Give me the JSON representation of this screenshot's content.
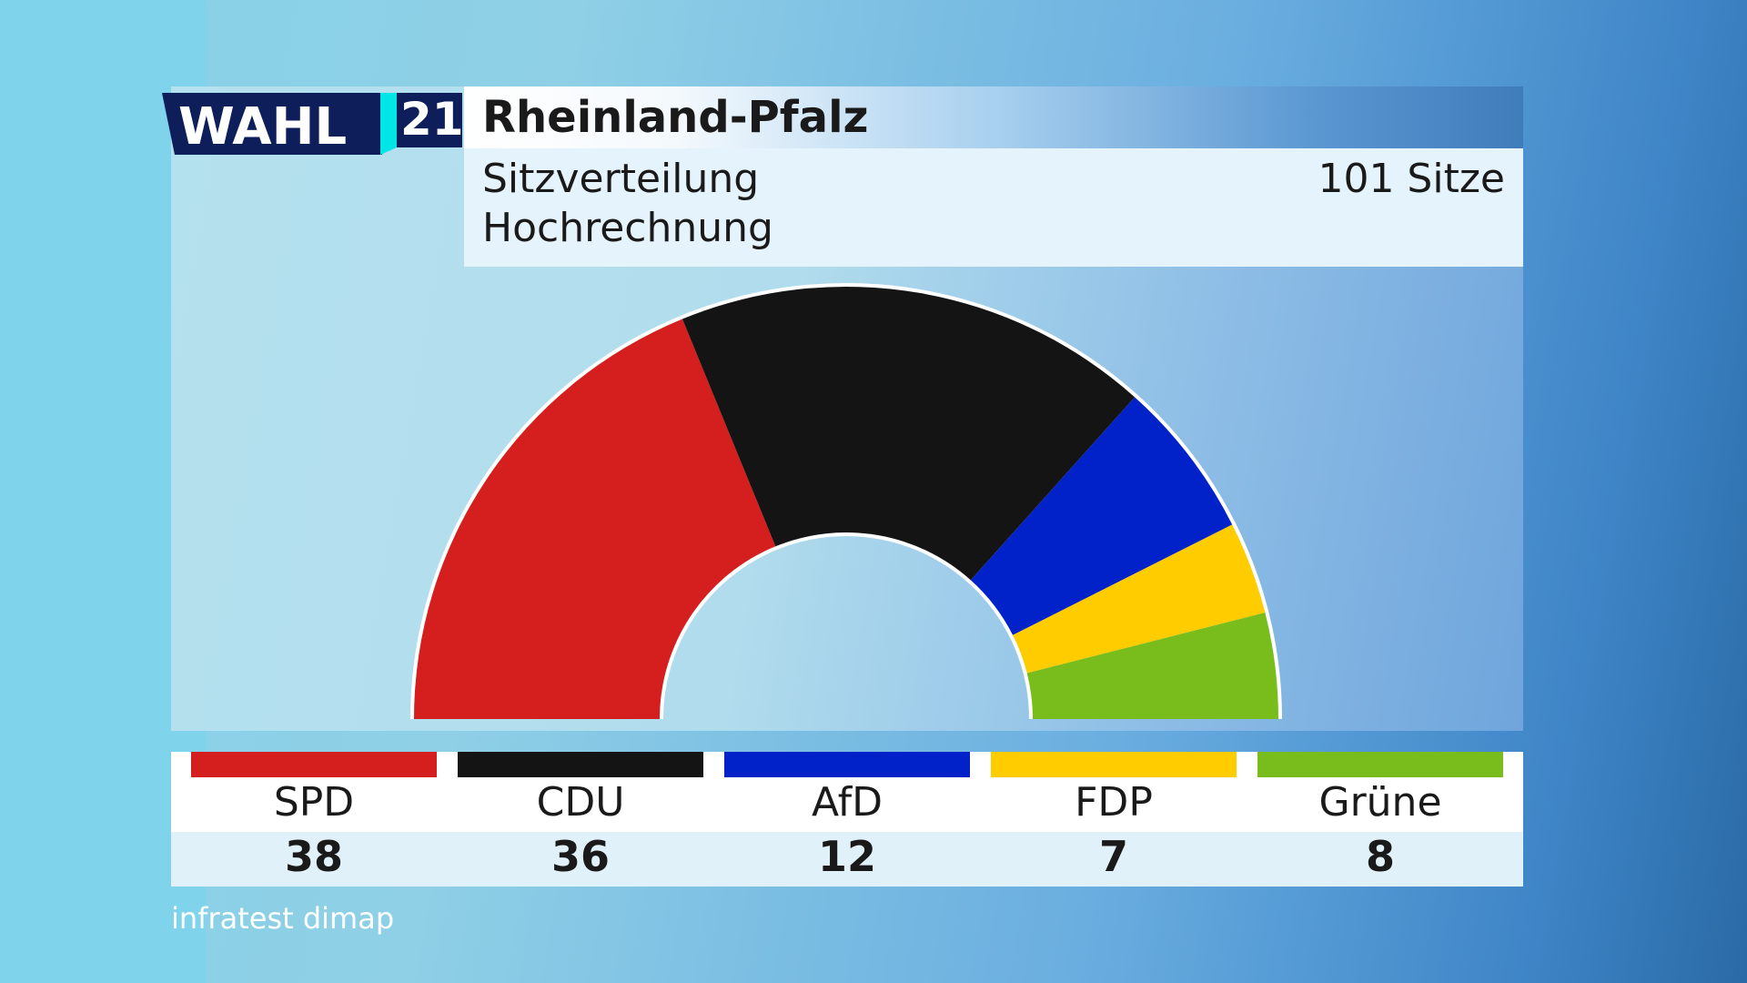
{
  "logo": {
    "word": "WAHL",
    "year": "21"
  },
  "header": {
    "title": "Rheinland-Pfalz",
    "subtitle_1": "Sitzverteilung",
    "subtitle_2": "Hochrechnung",
    "total": "101 Sitze"
  },
  "source": "infratest dimap",
  "colors": {
    "SPD": "#d51f1f",
    "CDU": "#141414",
    "AfD": "#0022c8",
    "FDP": "#ffcc00",
    "Grüne": "#78bd1c"
  },
  "chart_data": {
    "type": "pie",
    "shape": "semicircle",
    "title": "Rheinland-Pfalz",
    "subtitle": "Sitzverteilung Hochrechnung",
    "total_seats": 101,
    "categories": [
      "SPD",
      "CDU",
      "AfD",
      "FDP",
      "Grüne"
    ],
    "values": [
      38,
      36,
      12,
      7,
      8
    ],
    "colors": [
      "#d51f1f",
      "#141414",
      "#0022c8",
      "#ffcc00",
      "#78bd1c"
    ]
  }
}
